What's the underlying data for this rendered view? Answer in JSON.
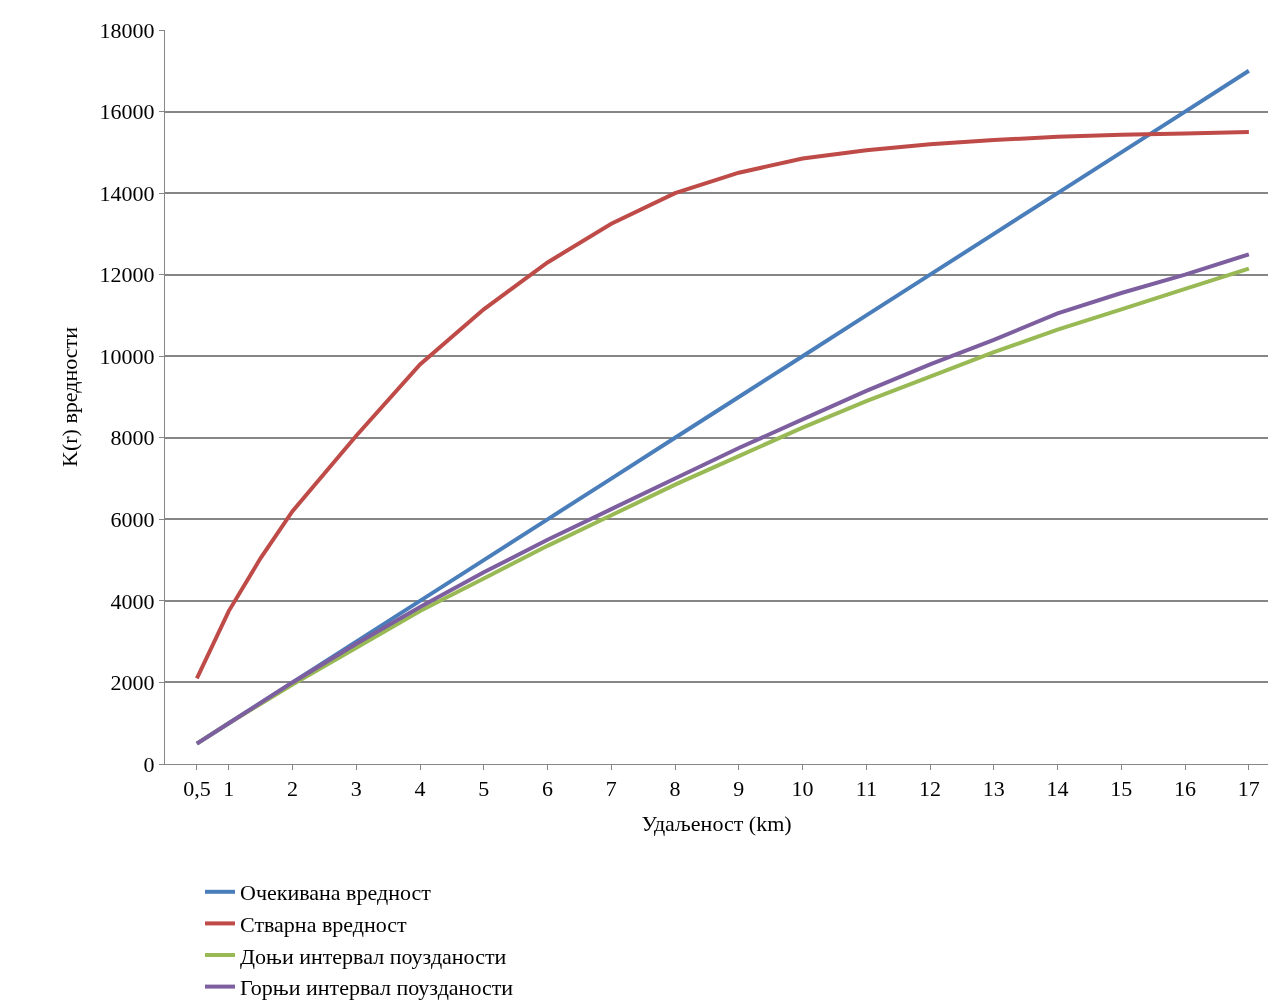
{
  "chart_data": {
    "type": "line",
    "xlabel": "Удаљеност (km)",
    "ylabel": "K(r) вредности",
    "xlim": [
      0,
      17.3
    ],
    "ylim": [
      0,
      18000
    ],
    "xticks": [
      {
        "value": 0.5,
        "label": "0,5"
      },
      1,
      2,
      3,
      4,
      5,
      6,
      7,
      8,
      9,
      10,
      11,
      12,
      13,
      14,
      15,
      16,
      17
    ],
    "yticks": [
      0,
      2000,
      4000,
      6000,
      8000,
      10000,
      12000,
      14000,
      16000,
      18000
    ],
    "grid": "y",
    "legend": "bottom",
    "marker": "none",
    "line_style": "solid",
    "series": [
      {
        "name": "Очекивана вредност",
        "color": "#4a7ebb",
        "x": [
          0.5,
          1,
          2,
          3,
          4,
          5,
          6,
          7,
          8,
          9,
          10,
          11,
          12,
          13,
          14,
          15,
          16,
          17
        ],
        "values": [
          500,
          1000,
          2000,
          3000,
          4000,
          5000,
          6000,
          7000,
          8000,
          9000,
          10000,
          11000,
          12000,
          13000,
          14000,
          15000,
          16000,
          17000
        ]
      },
      {
        "name": "Стварна вредност",
        "color": "#be4b48",
        "x": [
          0.5,
          1,
          1.5,
          2,
          3,
          4,
          5,
          6,
          7,
          8,
          9,
          10,
          11,
          12,
          13,
          14,
          15,
          16,
          17
        ],
        "values": [
          2100,
          3750,
          5050,
          6200,
          8050,
          9800,
          11150,
          12300,
          13250,
          14000,
          14500,
          14850,
          15050,
          15200,
          15300,
          15380,
          15430,
          15460,
          15500
        ]
      },
      {
        "name": "Доњи интервал поузданости",
        "color": "#98b954",
        "x": [
          0.5,
          1,
          2,
          3,
          4,
          5,
          6,
          7,
          8,
          9,
          10,
          11,
          12,
          13,
          14,
          15,
          16,
          17
        ],
        "values": [
          500,
          1000,
          1950,
          2850,
          3750,
          4550,
          5350,
          6100,
          6850,
          7550,
          8250,
          8900,
          9500,
          10100,
          10650,
          11150,
          11650,
          12150
        ]
      },
      {
        "name": "Горњи интервал поузданости",
        "color": "#7d5fa0",
        "x": [
          0.5,
          1,
          2,
          3,
          4,
          5,
          6,
          7,
          8,
          9,
          10,
          11,
          12,
          13,
          14,
          15,
          16,
          17
        ],
        "values": [
          500,
          1000,
          2000,
          2950,
          3850,
          4700,
          5500,
          6250,
          7000,
          7750,
          8450,
          9150,
          9800,
          10400,
          11050,
          11550,
          12000,
          12500
        ]
      }
    ]
  }
}
